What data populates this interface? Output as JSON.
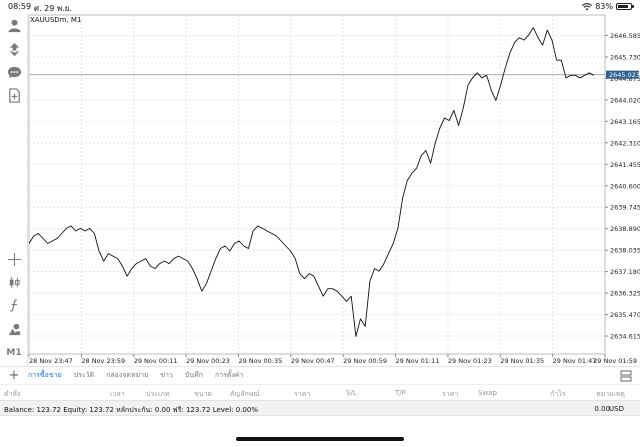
{
  "status_bar": {
    "time": "08:59",
    "date": "ศ. 29 พ.ย.",
    "battery": "83%",
    "battery_level": 0.83
  },
  "toolbar": {
    "timeframe": "M1"
  },
  "chart": {
    "symbol_label": "XAUUSDm, M1",
    "current_price": "2645.023",
    "colors": {
      "line": "#111111",
      "grid": "#e4e4e4",
      "price_line": "#9e9e9e",
      "price_tag": "#2d5f8f"
    }
  },
  "chart_data": {
    "type": "line",
    "title": "XAUUSDm, M1",
    "ylim": [
      2633.9,
      2647.4
    ],
    "y_ticks": [
      "2646.585",
      "2645.730",
      "2644.875",
      "2644.020",
      "2643.165",
      "2642.310",
      "2641.455",
      "2640.600",
      "2639.745",
      "2638.890",
      "2638.035",
      "2637.180",
      "2636.325",
      "2635.470",
      "2634.615"
    ],
    "x_ticks": [
      "28 Nov 23:47",
      "28 Nov 23:59",
      "29 Nov 00:11",
      "29 Nov 00:23",
      "29 Nov 00:35",
      "29 Nov 00:47",
      "29 Nov 00:59",
      "29 Nov 01:11",
      "29 Nov 01:23",
      "29 Nov 01:35",
      "29 Nov 01:47",
      "29 Nov 01:59"
    ],
    "grid": true,
    "current_price": 2645.023,
    "series": [
      {
        "values": [
          2638.3,
          2638.6,
          2638.7,
          2638.5,
          2638.3,
          2638.4,
          2638.5,
          2638.7,
          2638.9,
          2639.0,
          2638.8,
          2638.9,
          2638.8,
          2638.9,
          2638.7,
          2638.0,
          2637.6,
          2637.9,
          2637.8,
          2637.7,
          2637.4,
          2637.0,
          2637.3,
          2637.5,
          2637.6,
          2637.7,
          2637.4,
          2637.3,
          2637.5,
          2637.6,
          2637.5,
          2637.7,
          2637.8,
          2637.7,
          2637.6,
          2637.3,
          2636.9,
          2636.4,
          2636.7,
          2637.2,
          2637.7,
          2638.1,
          2638.2,
          2638.0,
          2638.3,
          2638.4,
          2638.2,
          2638.1,
          2638.8,
          2639.0,
          2638.9,
          2638.8,
          2638.7,
          2638.6,
          2638.4,
          2638.2,
          2638.0,
          2637.7,
          2637.1,
          2636.9,
          2637.1,
          2637.0,
          2636.6,
          2636.2,
          2636.5,
          2636.5,
          2636.4,
          2636.2,
          2636.0,
          2636.2,
          2634.6,
          2635.3,
          2635.0,
          2636.8,
          2637.3,
          2637.2,
          2637.5,
          2637.9,
          2638.3,
          2638.9,
          2640.1,
          2640.8,
          2641.1,
          2641.3,
          2641.8,
          2642.0,
          2641.5,
          2642.3,
          2642.9,
          2643.3,
          2643.2,
          2643.6,
          2643.0,
          2643.7,
          2644.6,
          2644.9,
          2645.1,
          2644.9,
          2645.0,
          2644.4,
          2644.0,
          2644.6,
          2645.3,
          2645.9,
          2646.3,
          2646.5,
          2646.4,
          2646.6,
          2646.9,
          2646.5,
          2646.2,
          2646.8,
          2646.4,
          2645.6,
          2645.6,
          2644.9,
          2645.0,
          2645.0,
          2644.9,
          2645.0,
          2645.1,
          2645.0
        ]
      }
    ]
  },
  "bottom_tabs": {
    "items": [
      "การซื้อขาย",
      "ประวัติ",
      "กล่องจดหมาย",
      "ข่าว",
      "บันทึก",
      "การตั้งค่า"
    ],
    "active_index": 0
  },
  "columns": [
    "คำสั่ง",
    "เวลา",
    "ประเภท",
    "ขนาด",
    "สัญลักษณ์",
    "ราคา",
    "S/L",
    "T/P",
    "ราคา",
    "Swap",
    "กำไร",
    "หมายเหตุ"
  ],
  "balance_bar": {
    "text": "Balance: 123.72 Equity: 123.72 หลักประกัน: 0.00 ฟรี: 123.72 Level: 0.00%",
    "profit": "0.00",
    "currency": "USD"
  }
}
